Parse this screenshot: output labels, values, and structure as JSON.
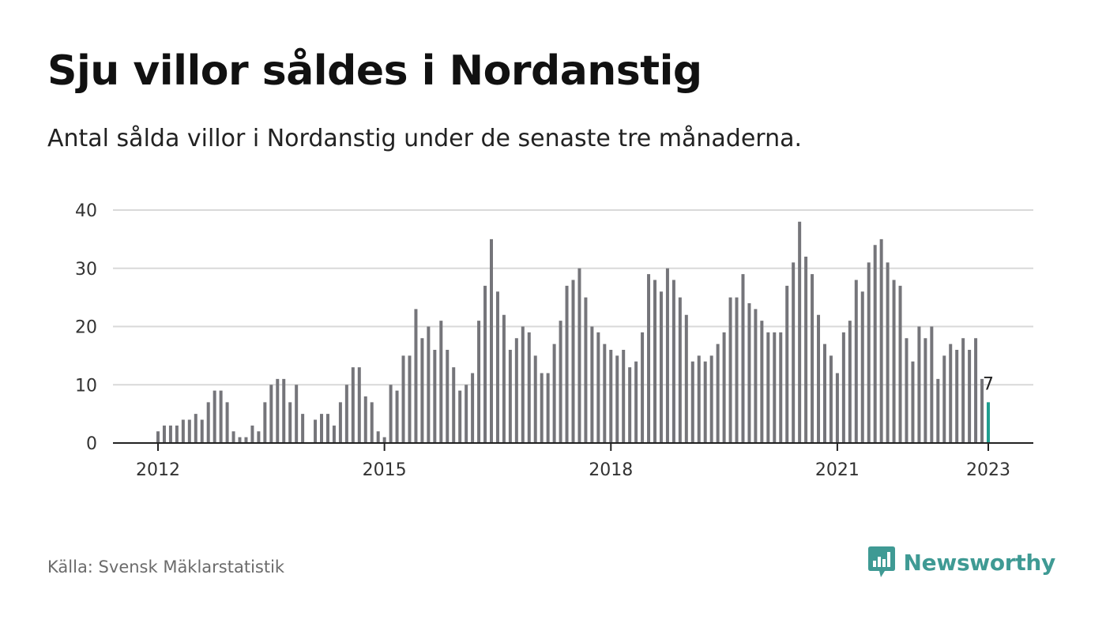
{
  "header": {
    "title": "Sju villor såldes i Nordanstig",
    "subtitle": "Antal sålda villor i Nordanstig under de senaste tre månaderna."
  },
  "footer": {
    "source": "Källa: Svensk Mäklarstatistik",
    "brand": "Newsworthy"
  },
  "colors": {
    "bar": "#75757a",
    "highlight": "#1f9e8f",
    "grid": "#d9d9d9",
    "axis": "#222222",
    "brand": "#3f9a94"
  },
  "chart_data": {
    "type": "bar",
    "x_start": "2012-01",
    "x_ticks": [
      "2012",
      "2015",
      "2018",
      "2021",
      "2023"
    ],
    "y_ticks": [
      0,
      10,
      20,
      30,
      40
    ],
    "ylim": [
      0,
      40
    ],
    "grid": true,
    "highlight_last": true,
    "last_label": "7",
    "values": [
      2,
      3,
      3,
      3,
      4,
      4,
      5,
      4,
      7,
      9,
      9,
      7,
      2,
      1,
      1,
      3,
      2,
      7,
      10,
      11,
      11,
      7,
      10,
      5,
      null,
      4,
      5,
      5,
      3,
      7,
      10,
      13,
      13,
      8,
      7,
      2,
      1,
      10,
      9,
      15,
      15,
      23,
      18,
      20,
      16,
      21,
      16,
      13,
      9,
      10,
      12,
      21,
      27,
      35,
      26,
      22,
      16,
      18,
      20,
      19,
      15,
      12,
      12,
      17,
      21,
      27,
      28,
      30,
      25,
      20,
      19,
      17,
      16,
      15,
      16,
      13,
      14,
      19,
      29,
      28,
      26,
      30,
      28,
      25,
      22,
      14,
      15,
      14,
      15,
      17,
      19,
      25,
      25,
      29,
      24,
      23,
      21,
      19,
      19,
      19,
      27,
      31,
      38,
      32,
      29,
      22,
      17,
      15,
      12,
      19,
      21,
      28,
      26,
      31,
      34,
      35,
      31,
      28,
      27,
      18,
      14,
      20,
      18,
      20,
      11,
      15,
      17,
      16,
      18,
      16,
      18,
      11,
      7
    ]
  }
}
